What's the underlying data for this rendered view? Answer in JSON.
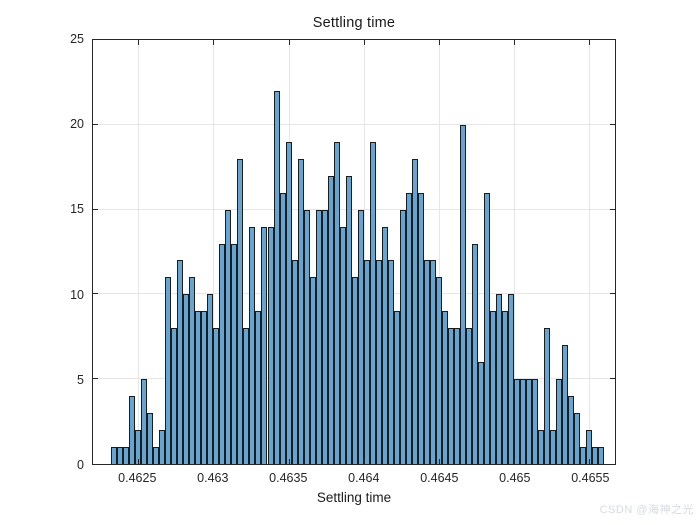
{
  "title": "Settling time",
  "xlabel": "Settling time",
  "watermark": "CSDN @海神之光",
  "chart_data": {
    "type": "bar",
    "subtype": "histogram",
    "title": "Settling time",
    "xlabel": "Settling time",
    "ylabel": "",
    "grid": true,
    "ylim": [
      0,
      25
    ],
    "xlim": [
      0.4622,
      0.46567
    ],
    "bin_start": 0.46232,
    "bin_width": 4e-05,
    "yticks": [
      0,
      5,
      10,
      15,
      20,
      25
    ],
    "xticks": [
      {
        "value": 0.4625,
        "label": "0.4625"
      },
      {
        "value": 0.463,
        "label": "0.463"
      },
      {
        "value": 0.4635,
        "label": "0.4635"
      },
      {
        "value": 0.464,
        "label": "0.464"
      },
      {
        "value": 0.4645,
        "label": "0.4645"
      },
      {
        "value": 0.465,
        "label": "0.465"
      },
      {
        "value": 0.4655,
        "label": "0.4655"
      }
    ],
    "values": [
      1,
      1,
      1,
      4,
      2,
      5,
      3,
      1,
      2,
      11,
      8,
      12,
      10,
      11,
      9,
      9,
      10,
      8,
      13,
      15,
      13,
      18,
      8,
      14,
      9,
      14,
      14,
      22,
      16,
      19,
      12,
      18,
      15,
      11,
      15,
      15,
      17,
      19,
      14,
      17,
      11,
      15,
      12,
      19,
      12,
      14,
      12,
      9,
      15,
      16,
      18,
      16,
      12,
      12,
      11,
      9,
      8,
      8,
      20,
      8,
      13,
      6,
      16,
      9,
      10,
      9,
      10,
      5,
      5,
      5,
      5,
      2,
      8,
      2,
      5,
      7,
      4,
      3,
      1,
      2,
      1,
      1
    ],
    "colors": {
      "bar_face": "#66a5d2",
      "bar_edge": "#1c1c1c",
      "axis": "#262626",
      "grid": "#e6e6e6",
      "text": "#262626",
      "watermark": "#d6dbe0"
    }
  }
}
